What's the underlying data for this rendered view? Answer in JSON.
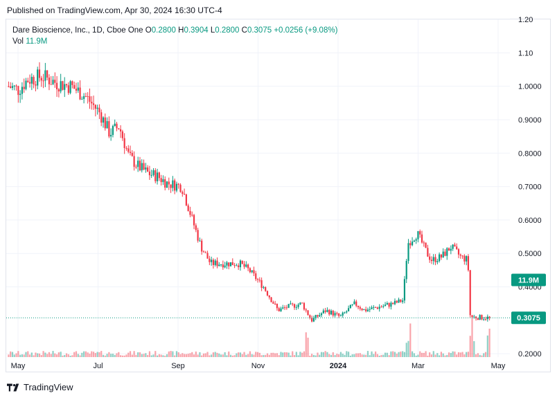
{
  "header": {
    "published_text": "Published on TradingView.com, Apr 30, 2024 16:30 UTC-4"
  },
  "legend": {
    "symbol": "Dare Bioscience, Inc., 1D, Cboe One",
    "open_label": "O",
    "open": "0.2800",
    "high_label": "H",
    "high": "0.3904",
    "low_label": "L",
    "low": "0.2800",
    "close_label": "C",
    "close": "0.3075",
    "change": "+0.0256 (+9.08%)",
    "vol_label": "Vol",
    "vol": "11.9M"
  },
  "brand": {
    "name": "TradingView"
  },
  "colors": {
    "up": "#089981",
    "down": "#f23645",
    "grid": "#f0f3fa",
    "axis_text": "#131722"
  },
  "chart_data": {
    "type": "candlestick",
    "y_axis": {
      "min": 0.19,
      "max": 1.2,
      "ticks": [
        "1.20",
        "1.10",
        "1.0000",
        "0.9000",
        "0.8000",
        "0.7000",
        "0.6000",
        "0.5000",
        "0.4000",
        "0.3075",
        "0.2000"
      ]
    },
    "x_axis": {
      "labels": [
        "May",
        "Jul",
        "Sep",
        "Nov",
        "2024",
        "Mar",
        "May"
      ]
    },
    "last_price_label": "0.3075",
    "volume_label": "11.9M",
    "grid": true,
    "anchors": [
      {
        "t": 0,
        "v": 1.0
      },
      {
        "t": 0.02,
        "v": 0.99
      },
      {
        "t": 0.04,
        "v": 1.02
      },
      {
        "t": 0.07,
        "v": 1.03
      },
      {
        "t": 0.1,
        "v": 1.01
      },
      {
        "t": 0.13,
        "v": 1.0
      },
      {
        "t": 0.16,
        "v": 0.97
      },
      {
        "t": 0.19,
        "v": 0.92
      },
      {
        "t": 0.21,
        "v": 0.86
      },
      {
        "t": 0.23,
        "v": 0.88
      },
      {
        "t": 0.25,
        "v": 0.79
      },
      {
        "t": 0.27,
        "v": 0.76
      },
      {
        "t": 0.29,
        "v": 0.74
      },
      {
        "t": 0.31,
        "v": 0.73
      },
      {
        "t": 0.33,
        "v": 0.71
      },
      {
        "t": 0.36,
        "v": 0.7
      },
      {
        "t": 0.38,
        "v": 0.61
      },
      {
        "t": 0.4,
        "v": 0.52
      },
      {
        "t": 0.42,
        "v": 0.47
      },
      {
        "t": 0.45,
        "v": 0.47
      },
      {
        "t": 0.48,
        "v": 0.47
      },
      {
        "t": 0.5,
        "v": 0.45
      },
      {
        "t": 0.53,
        "v": 0.4
      },
      {
        "t": 0.56,
        "v": 0.33
      },
      {
        "t": 0.58,
        "v": 0.34
      },
      {
        "t": 0.61,
        "v": 0.35
      },
      {
        "t": 0.63,
        "v": 0.3
      },
      {
        "t": 0.66,
        "v": 0.33
      },
      {
        "t": 0.69,
        "v": 0.31
      },
      {
        "t": 0.72,
        "v": 0.35
      },
      {
        "t": 0.74,
        "v": 0.33
      },
      {
        "t": 0.77,
        "v": 0.34
      },
      {
        "t": 0.8,
        "v": 0.35
      },
      {
        "t": 0.82,
        "v": 0.36
      },
      {
        "t": 0.83,
        "v": 0.53
      },
      {
        "t": 0.85,
        "v": 0.56
      },
      {
        "t": 0.87,
        "v": 0.5
      },
      {
        "t": 0.88,
        "v": 0.48
      },
      {
        "t": 0.9,
        "v": 0.49
      },
      {
        "t": 0.92,
        "v": 0.52
      },
      {
        "t": 0.94,
        "v": 0.49
      },
      {
        "t": 0.955,
        "v": 0.48
      },
      {
        "t": 0.96,
        "v": 0.31
      },
      {
        "t": 1.0,
        "v": 0.3075
      }
    ]
  }
}
